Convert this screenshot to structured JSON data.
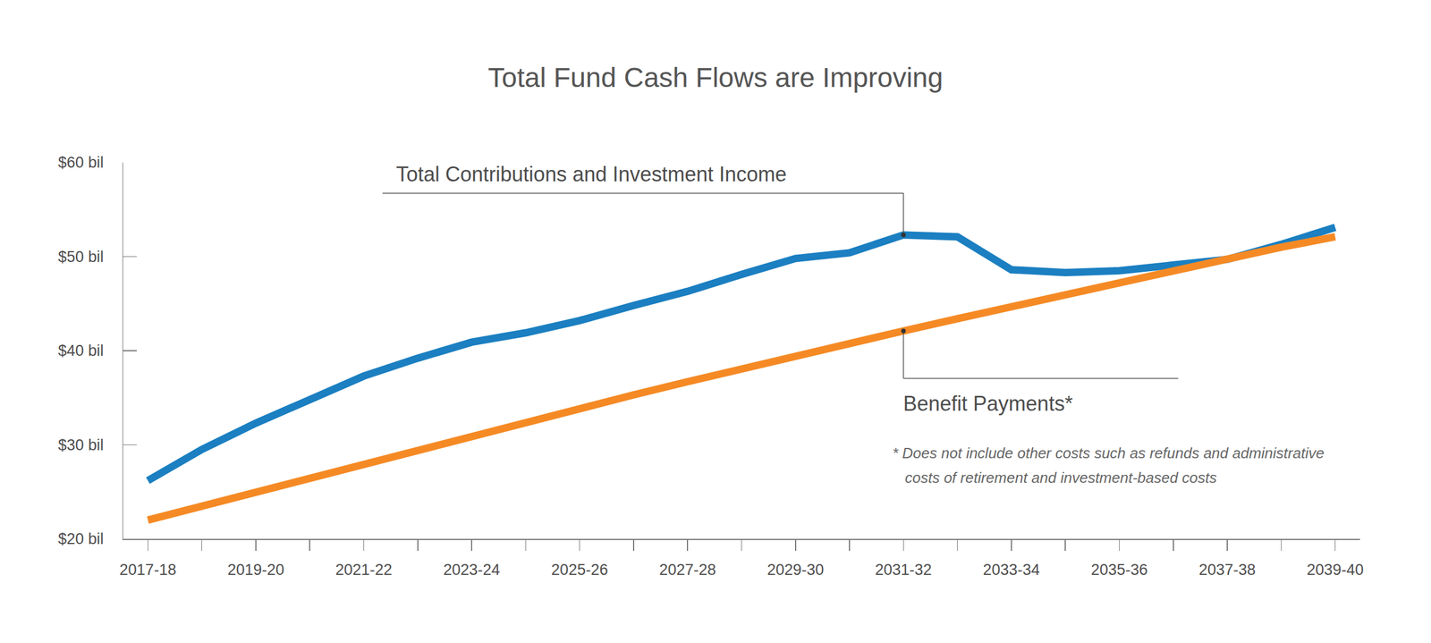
{
  "chart_data": {
    "type": "line",
    "title": "Total Fund Cash Flows are Improving",
    "categories": [
      "2017-18",
      null,
      "2019-20",
      null,
      "2021-22",
      null,
      "2023-24",
      null,
      "2025-26",
      null,
      "2027-28",
      null,
      "2029-30",
      null,
      "2031-32",
      null,
      "2033-34",
      null,
      "2035-36",
      null,
      "2037-38",
      null,
      "2039-40"
    ],
    "series": [
      {
        "name": "Total Contributions and Investment Income",
        "color": "#1b7fc1",
        "label_x": "2031-32",
        "values": [
          26.2,
          29.5,
          32.3,
          34.9,
          37.3,
          39.2,
          40.9,
          41.9,
          43.2,
          44.8,
          46.3,
          48.1,
          49.8,
          50.4,
          52.3,
          52.1,
          48.6,
          48.3,
          48.5,
          49.1,
          49.7,
          51.3,
          53.1
        ]
      },
      {
        "name": "Benefit Payments*",
        "color": "#f58a25",
        "label_x": "2031-32",
        "values": [
          22.0,
          23.5,
          25.0,
          26.5,
          28.0,
          29.5,
          31.0,
          32.5,
          33.9,
          35.3,
          36.7,
          38.1,
          39.5,
          40.8,
          42.1,
          43.4,
          44.7,
          46.0,
          47.3,
          48.6,
          49.8,
          51.0,
          52.1
        ]
      }
    ],
    "ylim": [
      20,
      60
    ],
    "yticks": [
      {
        "value": 20,
        "label": "$20 bil"
      },
      {
        "value": 30,
        "label": "$30 bil"
      },
      {
        "value": 40,
        "label": "$40 bil"
      },
      {
        "value": 50,
        "label": "$50 bil"
      },
      {
        "value": 60,
        "label": "$60 bil"
      }
    ],
    "grid": false,
    "footnote": [
      "* Does not include other costs such as refunds and administrative",
      "costs of retirement and investment-based costs"
    ]
  }
}
